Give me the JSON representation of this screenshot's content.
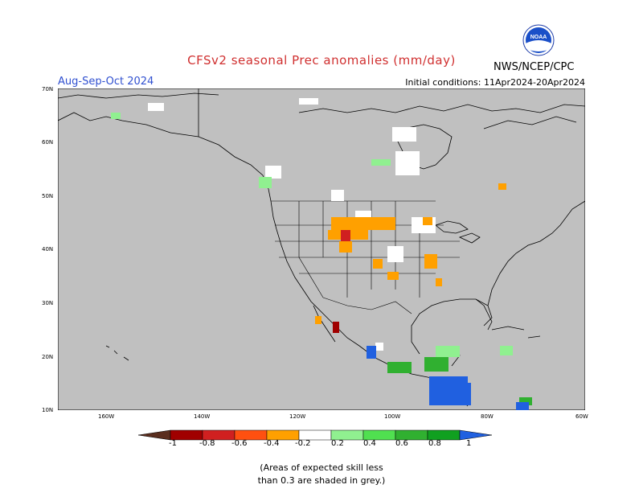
{
  "title": "CFSv2 seasonal Prec anomalies (mm/day)",
  "period": "Aug-Sep-Oct 2024",
  "initial_conditions": "Initial conditions: 11Apr2024-20Apr2024",
  "agency": "NWS/NCEP/CPC",
  "logo_text": "NOAA",
  "lat_labels": [
    "70N",
    "60N",
    "50N",
    "40N",
    "30N",
    "20N",
    "10N"
  ],
  "lon_labels": [
    "160W",
    "140W",
    "120W",
    "100W",
    "80W",
    "60W"
  ],
  "colorbar": {
    "labels": [
      "-1",
      "-0.8",
      "-0.6",
      "-0.4",
      "-0.2",
      "0.2",
      "0.4",
      "0.6",
      "0.8",
      "1"
    ],
    "colors": [
      "#5a2e1e",
      "#a00000",
      "#d02020",
      "#ff5010",
      "#ffa000",
      "#ffffff",
      "#90f090",
      "#50e050",
      "#30b030",
      "#10a020",
      "#2060e0"
    ]
  },
  "note_line1": "(Areas of expected skill less",
  "note_line2": "than 0.3 are shaded in grey.)",
  "colors": {
    "grey": "#c0c0c0",
    "orange": "#ffa000",
    "red": "#a00000",
    "lightgreen": "#90f090",
    "green": "#30b030",
    "blue": "#2060e0",
    "white": "#ffffff"
  }
}
